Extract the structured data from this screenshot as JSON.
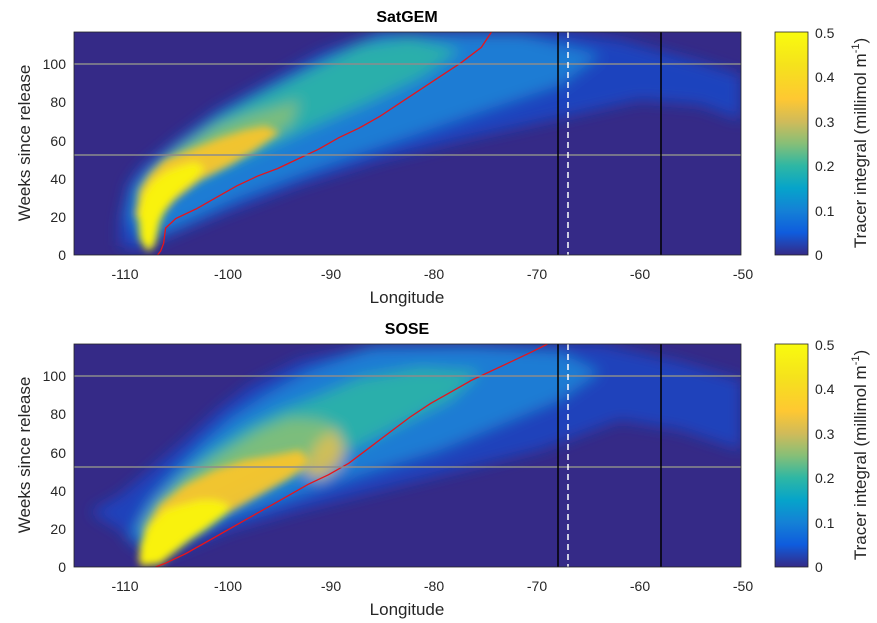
{
  "chart_data": [
    {
      "type": "heatmap",
      "title": "SatGEM",
      "xlabel": "Longitude",
      "ylabel": "Weeks since release",
      "xlim": [
        -115.5,
        -50
      ],
      "ylim": [
        0,
        116
      ],
      "xticks": [
        -110,
        -100,
        -90,
        -80,
        -70,
        -60,
        -50
      ],
      "yticks": [
        0,
        20,
        40,
        60,
        80,
        100
      ],
      "colorbar": {
        "label": "Tracer integral (millimol m",
        "label_sup": "-1",
        "label_close": ")",
        "range": [
          0,
          0.5
        ],
        "ticks": [
          0,
          0.1,
          0.2,
          0.3,
          0.4,
          0.5
        ],
        "colormap": "parula"
      },
      "horizontal_lines_weeks": [
        52,
        100
      ],
      "vertical_black_lines_lon": [
        -68,
        -58
      ],
      "vertical_dashed_white_lon": -67,
      "tracer_center_path": {
        "color": "#e8141a",
        "lon": [
          -107.3,
          -107.0,
          -106.7,
          -106.5,
          -105.5,
          -103.5,
          -101.5,
          -99.5,
          -97.5,
          -95.5,
          -93.5,
          -91.5,
          -89.5,
          -87.5,
          -85.5,
          -83.5,
          -81.5,
          -79.5,
          -77.5,
          -75.5,
          -74.5
        ],
        "weeks": [
          0,
          2,
          6,
          14,
          19,
          24,
          30,
          36,
          41,
          45,
          50,
          55,
          61,
          66,
          72,
          79,
          86,
          93,
          100,
          108,
          116
        ]
      }
    },
    {
      "type": "heatmap",
      "title": "SOSE",
      "xlabel": "Longitude",
      "ylabel": "Weeks since release",
      "xlim": [
        -115.5,
        -50
      ],
      "ylim": [
        0,
        116
      ],
      "xticks": [
        -110,
        -100,
        -90,
        -80,
        -70,
        -60,
        -50
      ],
      "yticks": [
        0,
        20,
        40,
        60,
        80,
        100
      ],
      "colorbar": {
        "label": "Tracer integral (millimol m",
        "label_sup": "-1",
        "label_close": ")",
        "range": [
          0,
          0.5
        ],
        "ticks": [
          0,
          0.1,
          0.2,
          0.3,
          0.4,
          0.5
        ],
        "colormap": "parula"
      },
      "horizontal_lines_weeks": [
        52,
        100
      ],
      "vertical_black_lines_lon": [
        -68,
        -58
      ],
      "vertical_dashed_white_lon": -67,
      "tracer_center_path": {
        "color": "#e8141a",
        "lon": [
          -107.5,
          -106.5,
          -104.5,
          -102.5,
          -100.5,
          -98.5,
          -96.5,
          -94.5,
          -92.5,
          -90.5,
          -88.5,
          -86.5,
          -84.5,
          -82.5,
          -80.5,
          -78.5,
          -76.5,
          -74.5,
          -72.5,
          -70.5,
          -69.0
        ],
        "weeks": [
          0,
          2,
          7,
          13,
          19,
          25,
          31,
          37,
          43,
          48,
          54,
          62,
          70,
          78,
          85,
          91,
          97,
          102,
          107,
          112,
          116
        ]
      }
    }
  ]
}
